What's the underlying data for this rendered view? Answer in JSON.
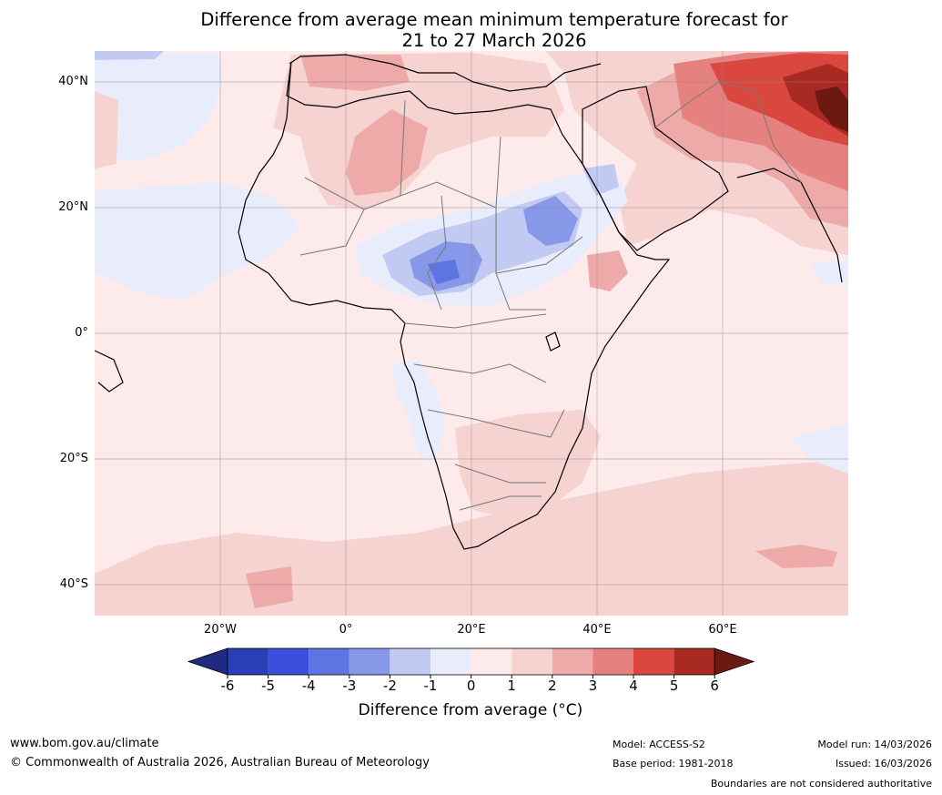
{
  "title": {
    "line1": "Difference from average mean minimum temperature forecast for",
    "line2": "21 to 27 March 2026"
  },
  "map": {
    "y_labels": [
      "40°N",
      "20°N",
      "0°",
      "20°S",
      "40°S"
    ],
    "x_labels": [
      "20°W",
      "0°",
      "20°E",
      "40°E",
      "60°E"
    ]
  },
  "colorbar": {
    "ticks": [
      "-6",
      "-5",
      "-4",
      "-3",
      "-2",
      "-1",
      "0",
      "1",
      "2",
      "3",
      "4",
      "5",
      "6"
    ],
    "colors": [
      "#1f2b80",
      "#2a3fb5",
      "#3a50dc",
      "#5f74e3",
      "#8898e8",
      "#c2caf3",
      "#e9ecfb",
      "#fcebea",
      "#f6d2d0",
      "#edaaa8",
      "#e5827f",
      "#d9473f",
      "#a82a22",
      "#6b1a12"
    ],
    "label": "Difference from average (°C)"
  },
  "footer": {
    "website": "www.bom.gov.au/climate",
    "copyright": "© Commonwealth of Australia 2026, Australian Bureau of Meteorology",
    "model": "Model: ACCESS-S2",
    "base_period": "Base period: 1981-2018",
    "model_run": "Model run: 14/03/2026",
    "issued": "Issued: 16/03/2026",
    "disclaimer": "Boundaries are not considered authoritative"
  }
}
